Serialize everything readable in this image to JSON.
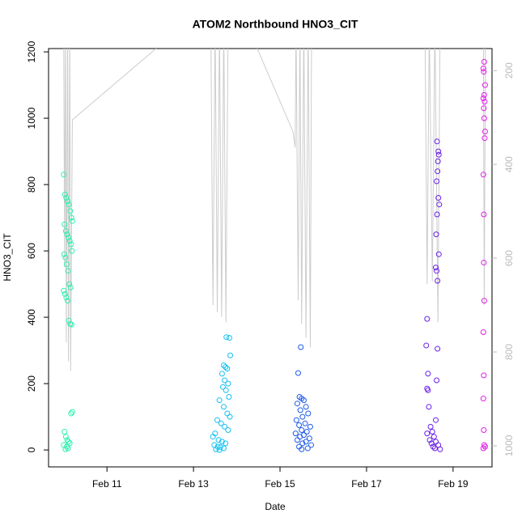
{
  "chart_data": {
    "type": "scatter",
    "title": "ATOM2 Northbound HNO3_CIT",
    "x_label": "Date",
    "y_label": "HNO3_CIT",
    "xlim": [
      9.65,
      19.9
    ],
    "xticks": [
      {
        "value": 11,
        "label": "Feb 11"
      },
      {
        "value": 13,
        "label": "Feb 13"
      },
      {
        "value": 15,
        "label": "Feb 15"
      },
      {
        "value": 17,
        "label": "Feb 17"
      },
      {
        "value": 19,
        "label": "Feb 19"
      }
    ],
    "ylim": [
      -51,
      1210
    ],
    "yticks": [
      0,
      200,
      400,
      600,
      800,
      1000,
      1200
    ],
    "y2lim": [
      1045,
      153
    ],
    "y2ticks": [
      200,
      400,
      600,
      800,
      1000
    ],
    "y2_color": "#bbbbbb",
    "series": [
      {
        "color": "#2ef0ad",
        "x": [
          10.0,
          10.03,
          10.06,
          10.09,
          10.12,
          10.15,
          10.18,
          10.2,
          10.02,
          10.05,
          10.08,
          10.11,
          10.14,
          10.17,
          10.19,
          10.01,
          10.04,
          10.07,
          10.1,
          10.13,
          10.16,
          10.0,
          10.03,
          10.06,
          10.09,
          10.12,
          10.15,
          10.18,
          10.2,
          10.17,
          10.02,
          10.05,
          10.08,
          10.11,
          10.14,
          10.0,
          10.07,
          10.1,
          10.04
        ],
        "values": [
          830,
          770,
          760,
          750,
          740,
          720,
          700,
          690,
          680,
          660,
          650,
          640,
          630,
          620,
          600,
          590,
          580,
          560,
          540,
          500,
          490,
          480,
          470,
          460,
          450,
          390,
          380,
          378,
          115,
          110,
          55,
          40,
          30,
          25,
          20,
          15,
          10,
          5,
          2
        ]
      },
      {
        "color": "#16c0f2",
        "x": [
          13.76,
          13.83,
          13.85,
          13.7,
          13.74,
          13.78,
          13.66,
          13.72,
          13.8,
          13.68,
          13.75,
          13.82,
          13.6,
          13.7,
          13.78,
          13.84,
          13.55,
          13.64,
          13.72,
          13.8,
          13.5,
          13.45,
          13.58,
          13.66,
          13.74,
          13.48,
          13.56,
          13.62,
          13.7,
          13.52,
          13.6
        ],
        "values": [
          340,
          338,
          285,
          255,
          250,
          245,
          230,
          210,
          200,
          190,
          180,
          160,
          150,
          130,
          110,
          100,
          90,
          80,
          70,
          60,
          50,
          40,
          30,
          25,
          20,
          15,
          10,
          8,
          5,
          2,
          0
        ]
      },
      {
        "color": "#1f5ce8",
        "x": [
          15.48,
          15.42,
          15.45,
          15.5,
          15.55,
          15.4,
          15.6,
          15.47,
          15.65,
          15.52,
          15.38,
          15.58,
          15.44,
          15.7,
          15.5,
          15.62,
          15.36,
          15.55,
          15.46,
          15.68,
          15.4,
          15.6,
          15.52,
          15.72,
          15.44,
          15.64,
          15.5
        ],
        "values": [
          310,
          232,
          160,
          155,
          150,
          140,
          130,
          120,
          110,
          100,
          90,
          80,
          75,
          70,
          60,
          55,
          50,
          45,
          40,
          35,
          30,
          25,
          20,
          15,
          10,
          5,
          2
        ]
      },
      {
        "color": "#6a1fe8",
        "x": [
          18.63,
          18.66,
          18.67,
          18.65,
          18.64,
          18.62,
          18.66,
          18.68,
          18.63,
          18.61,
          18.67,
          18.6,
          18.62,
          18.64,
          18.4,
          18.38,
          18.64,
          18.42,
          18.62,
          18.4,
          18.42,
          18.44,
          18.6,
          18.48,
          18.52,
          18.4,
          18.56,
          18.46,
          18.6,
          18.5,
          18.66,
          18.54,
          18.58,
          18.7
        ],
        "values": [
          930,
          900,
          890,
          870,
          840,
          810,
          760,
          740,
          710,
          650,
          590,
          550,
          540,
          510,
          395,
          315,
          305,
          230,
          210,
          185,
          180,
          130,
          90,
          70,
          55,
          50,
          40,
          30,
          25,
          20,
          15,
          10,
          5,
          2
        ]
      },
      {
        "color": "#e01ee8",
        "x": [
          19.72,
          19.7,
          19.71,
          19.74,
          19.72,
          19.7,
          19.73,
          19.71,
          19.72,
          19.74,
          19.73,
          19.7,
          19.71,
          19.71,
          19.72,
          19.7,
          19.71,
          19.7,
          19.71,
          19.72,
          19.74,
          19.7
        ],
        "values": [
          1170,
          1150,
          1140,
          1100,
          1070,
          1060,
          1050,
          1030,
          1000,
          960,
          940,
          830,
          710,
          565,
          450,
          355,
          225,
          155,
          60,
          15,
          10,
          5
        ]
      },
      {
        "type": "line",
        "axis": "y2",
        "color": "#cccccc",
        "x": [
          10.0,
          10.02,
          10.04,
          10.06,
          10.09,
          10.11,
          10.14,
          10.16,
          10.2,
          12.3,
          13.4,
          13.45,
          13.5,
          13.55,
          13.6,
          13.65,
          13.7,
          13.75,
          13.8,
          14.46,
          15.3,
          15.35,
          15.37,
          15.42,
          15.46,
          15.5,
          15.55,
          15.6,
          15.65,
          15.7,
          15.73,
          18.35,
          18.4,
          18.45,
          18.52,
          18.58,
          18.65,
          18.7,
          19.7,
          19.72,
          19.75
        ],
        "values": [
          100,
          620,
          100,
          780,
          100,
          820,
          100,
          840,
          305,
          140,
          100,
          700,
          100,
          715,
          100,
          725,
          100,
          737,
          100,
          150,
          330,
          364,
          100,
          690,
          100,
          740,
          100,
          770,
          100,
          790,
          100,
          100,
          655,
          100,
          650,
          100,
          737,
          100,
          100,
          700,
          100
        ]
      }
    ]
  }
}
